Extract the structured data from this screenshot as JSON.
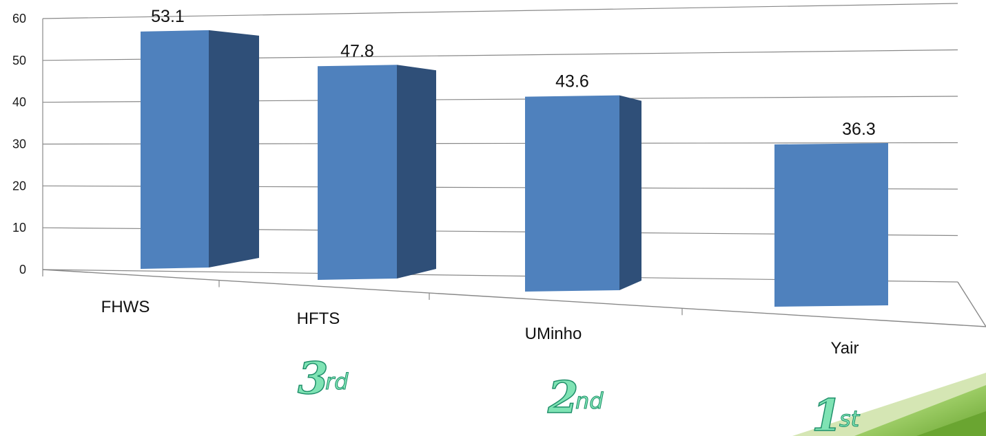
{
  "chart_data": {
    "type": "bar",
    "categories": [
      "FHWS",
      "HFTS",
      "UMinho",
      "Yair"
    ],
    "values": [
      53.1,
      47.8,
      43.6,
      36.3
    ],
    "data_labels": [
      "53.1",
      "47.8",
      "43.6",
      "36.3"
    ],
    "ylim": [
      0,
      60
    ],
    "yticks": [
      0,
      10,
      20,
      30,
      40,
      50,
      60
    ],
    "grid": true,
    "style": "3d-column",
    "bar_front_color": "#4f81bd",
    "bar_side_color": "#2f4f78",
    "grid_color": "#888888"
  },
  "ranks": [
    {
      "num": "3",
      "suffix": "rd"
    },
    {
      "num": "2",
      "suffix": "nd"
    },
    {
      "num": "1",
      "suffix": "st"
    }
  ],
  "colors": {
    "rank_fill": "#7fe3b4",
    "rank_stroke": "#1f8f6a",
    "corner_light": "#d5e6b4",
    "corner_mid": "#9ccc65",
    "corner_dark": "#6aa531"
  }
}
